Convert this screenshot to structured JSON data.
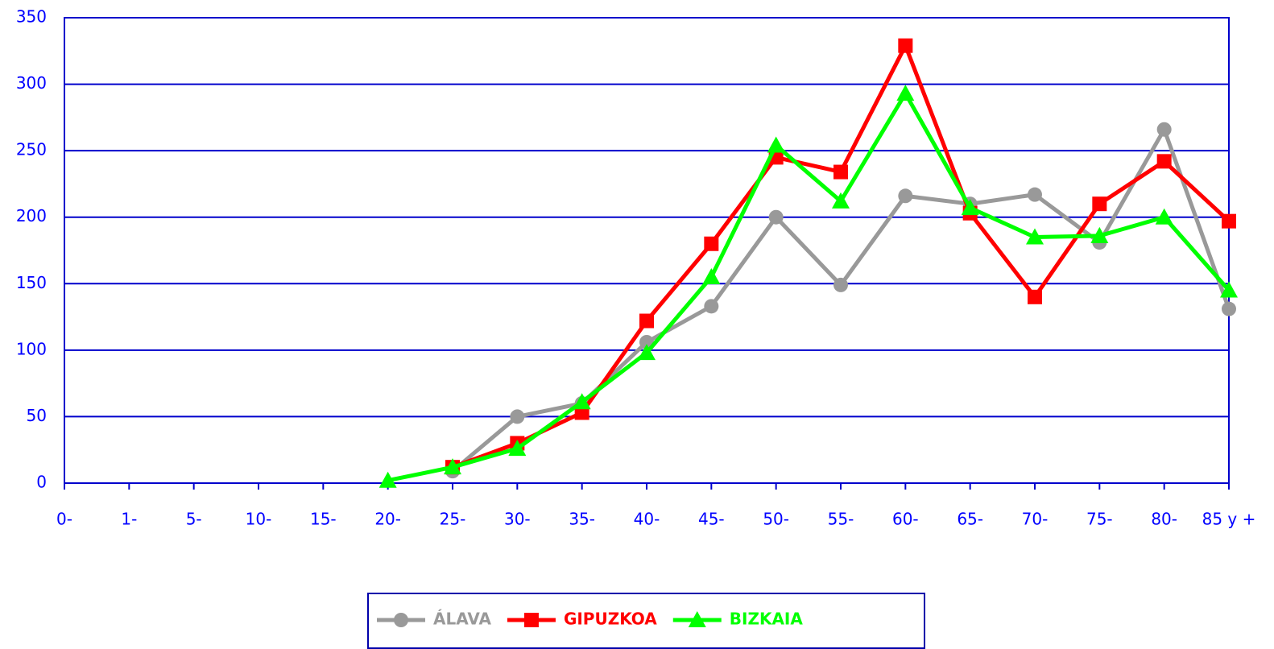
{
  "chart_data": {
    "type": "line",
    "categories": [
      "0-",
      "1-",
      "5-",
      "10-",
      "15-",
      "20-",
      "25-",
      "30-",
      "35-",
      "40-",
      "45-",
      "50-",
      "55-",
      "60-",
      "65-",
      "70-",
      "75-",
      "80-",
      "85 y +"
    ],
    "series": [
      {
        "name": "ÁLAVA",
        "color": "#999999",
        "marker": "circle",
        "values": [
          null,
          null,
          null,
          null,
          null,
          null,
          9,
          50,
          60,
          106,
          133,
          200,
          149,
          216,
          210,
          217,
          181,
          266,
          131
        ]
      },
      {
        "name": "GIPUZKOA",
        "color": "#ff0000",
        "marker": "square",
        "values": [
          null,
          null,
          null,
          null,
          null,
          null,
          12,
          30,
          53,
          122,
          180,
          245,
          234,
          329,
          203,
          140,
          210,
          242,
          197
        ]
      },
      {
        "name": "BIZKAIA",
        "color": "#00ff00",
        "marker": "triangle",
        "values": [
          null,
          null,
          null,
          null,
          null,
          2,
          12,
          26,
          61,
          98,
          155,
          254,
          212,
          293,
          207,
          185,
          186,
          200,
          145
        ]
      }
    ],
    "ylim": [
      0,
      350
    ],
    "yticks": [
      0,
      50,
      100,
      150,
      200,
      250,
      300,
      350
    ],
    "grid": true,
    "legend": "bottom"
  }
}
